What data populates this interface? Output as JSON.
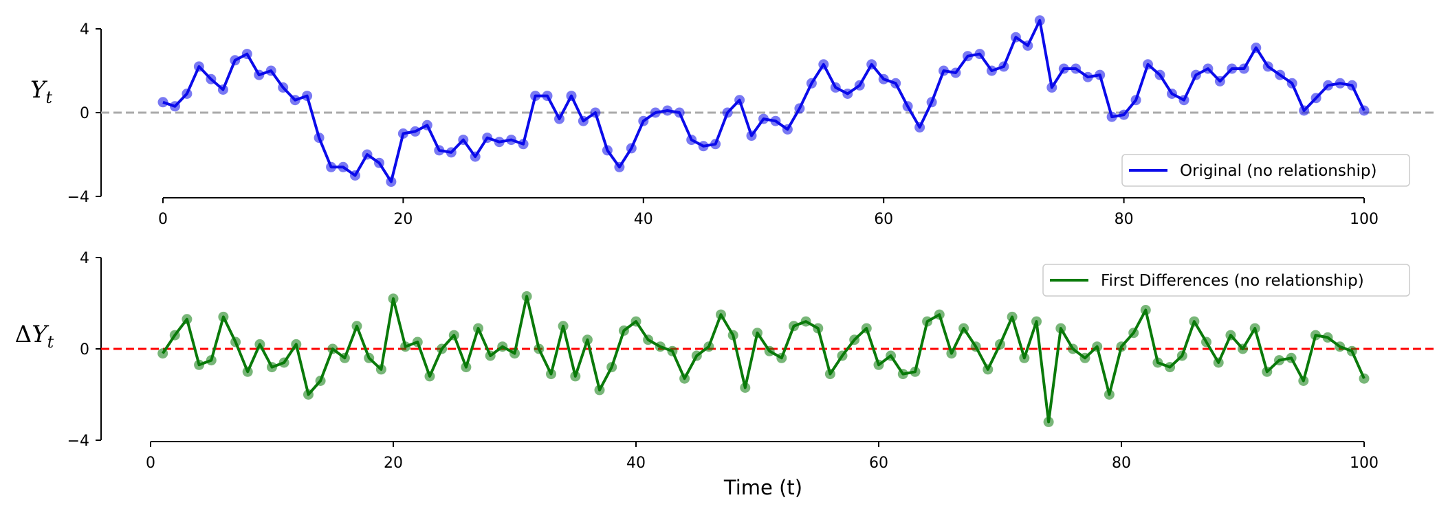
{
  "chart_data": [
    {
      "type": "line",
      "ylabel": "Y",
      "ylabel_sub": "t",
      "ylabel_prefix": "",
      "xlim": [
        0,
        100
      ],
      "ylim": [
        -4,
        4
      ],
      "xticks": [
        "0",
        "20",
        "40",
        "60",
        "80",
        "100"
      ],
      "yticks": [
        "4",
        "0",
        "−4"
      ],
      "reference_line": {
        "y": 0,
        "color": "#aaaaaa",
        "style": "dashed"
      },
      "legend": {
        "label": "Original (no relationship)",
        "location": "lower-right"
      },
      "series": [
        {
          "name": "Original (no relationship)",
          "color": "#0b0bea",
          "x": [
            0,
            1,
            2,
            3,
            4,
            5,
            6,
            7,
            8,
            9,
            10,
            11,
            12,
            13,
            14,
            15,
            16,
            17,
            18,
            19,
            20,
            21,
            22,
            23,
            24,
            25,
            26,
            27,
            28,
            29,
            30,
            31,
            32,
            33,
            34,
            35,
            36,
            37,
            38,
            39,
            40,
            41,
            42,
            43,
            44,
            45,
            46,
            47,
            48,
            49,
            50,
            51,
            52,
            53,
            54,
            55,
            56,
            57,
            58,
            59,
            60,
            61,
            62,
            63,
            64,
            65,
            66,
            67,
            68,
            69,
            70,
            71,
            72,
            73,
            74,
            75,
            76,
            77,
            78,
            79,
            80,
            81,
            82,
            83,
            84,
            85,
            86,
            87,
            88,
            89,
            90,
            91,
            92,
            93,
            94,
            95,
            96,
            97,
            98,
            99,
            100
          ],
          "values": [
            0.5,
            0.3,
            0.9,
            2.2,
            1.6,
            1.1,
            2.5,
            2.8,
            1.8,
            2.0,
            1.2,
            0.6,
            0.8,
            -1.2,
            -2.6,
            -2.6,
            -3.0,
            -2.0,
            -2.4,
            -3.3,
            -1.0,
            -0.9,
            -0.6,
            -1.8,
            -1.9,
            -1.3,
            -2.1,
            -1.2,
            -1.4,
            -1.3,
            -1.5,
            0.8,
            0.8,
            -0.3,
            0.8,
            -0.4,
            0.0,
            -1.8,
            -2.6,
            -1.7,
            -0.4,
            0.0,
            0.1,
            0.0,
            -1.3,
            -1.6,
            -1.5,
            0.0,
            0.6,
            -1.1,
            -0.3,
            -0.4,
            -0.8,
            0.2,
            1.4,
            2.3,
            1.2,
            0.9,
            1.3,
            2.3,
            1.6,
            1.4,
            0.3,
            -0.7,
            0.5,
            2.0,
            1.9,
            2.7,
            2.8,
            2.0,
            2.2,
            3.6,
            3.2,
            4.4,
            1.2,
            2.1,
            2.1,
            1.7,
            1.8,
            -0.2,
            -0.1,
            0.6,
            2.3,
            1.8,
            0.9,
            0.6,
            1.8,
            2.1,
            1.5,
            2.1,
            2.1,
            3.1,
            2.2,
            1.8,
            1.4,
            0.1,
            0.7,
            1.3,
            1.4,
            1.3,
            0.1
          ]
        }
      ]
    },
    {
      "type": "line",
      "ylabel": "Y",
      "ylabel_sub": "t",
      "ylabel_prefix": "Δ",
      "xlabel": "Time (t)",
      "xlim": [
        0,
        100
      ],
      "ylim": [
        -4,
        4
      ],
      "xticks": [
        "0",
        "20",
        "40",
        "60",
        "80",
        "100"
      ],
      "yticks": [
        "4",
        "0",
        "−4"
      ],
      "reference_line": {
        "y": 0,
        "color": "#ff0000",
        "style": "dashed"
      },
      "legend": {
        "label": "First Differences (no relationship)",
        "location": "upper-right"
      },
      "series": [
        {
          "name": "First Differences (no relationship)",
          "color": "#0a7a0a",
          "x": [
            1,
            2,
            3,
            4,
            5,
            6,
            7,
            8,
            9,
            10,
            11,
            12,
            13,
            14,
            15,
            16,
            17,
            18,
            19,
            20,
            21,
            22,
            23,
            24,
            25,
            26,
            27,
            28,
            29,
            30,
            31,
            32,
            33,
            34,
            35,
            36,
            37,
            38,
            39,
            40,
            41,
            42,
            43,
            44,
            45,
            46,
            47,
            48,
            49,
            50,
            51,
            52,
            53,
            54,
            55,
            56,
            57,
            58,
            59,
            60,
            61,
            62,
            63,
            64,
            65,
            66,
            67,
            68,
            69,
            70,
            71,
            72,
            73,
            74,
            75,
            76,
            77,
            78,
            79,
            80,
            81,
            82,
            83,
            84,
            85,
            86,
            87,
            88,
            89,
            90,
            91,
            92,
            93,
            94,
            95,
            96,
            97,
            98,
            99,
            100
          ],
          "values": [
            -0.2,
            0.6,
            1.3,
            -0.7,
            -0.5,
            1.4,
            0.3,
            -1.0,
            0.2,
            -0.8,
            -0.6,
            0.2,
            -2.0,
            -1.4,
            0.0,
            -0.4,
            1.0,
            -0.4,
            -0.9,
            2.2,
            0.1,
            0.3,
            -1.2,
            0.0,
            0.6,
            -0.8,
            0.9,
            -0.3,
            0.1,
            -0.2,
            2.3,
            0.0,
            -1.1,
            1.0,
            -1.2,
            0.4,
            -1.8,
            -0.8,
            0.8,
            1.2,
            0.4,
            0.1,
            -0.1,
            -1.3,
            -0.3,
            0.1,
            1.5,
            0.6,
            -1.7,
            0.7,
            -0.1,
            -0.4,
            1.0,
            1.2,
            0.9,
            -1.1,
            -0.3,
            0.4,
            0.9,
            -0.7,
            -0.3,
            -1.1,
            -1.0,
            1.2,
            1.5,
            -0.2,
            0.9,
            0.1,
            -0.9,
            0.2,
            1.4,
            -0.4,
            1.2,
            -3.2,
            0.9,
            0.0,
            -0.4,
            0.1,
            -2.0,
            0.1,
            0.7,
            1.7,
            -0.6,
            -0.8,
            -0.3,
            1.2,
            0.3,
            -0.6,
            0.6,
            0.0,
            0.9,
            -1.0,
            -0.5,
            -0.4,
            -1.4,
            0.6,
            0.5,
            0.1,
            -0.1,
            -1.3
          ]
        }
      ]
    }
  ]
}
